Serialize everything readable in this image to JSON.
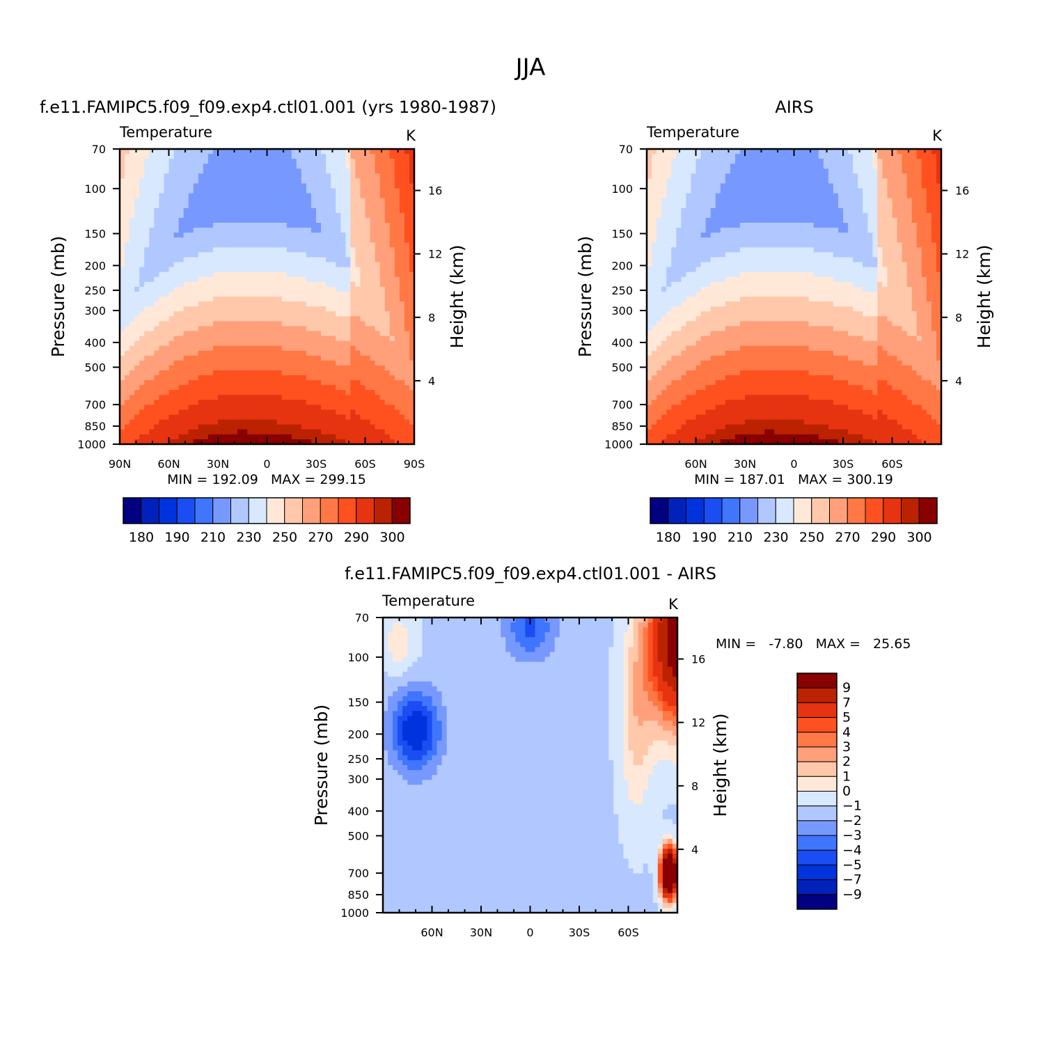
{
  "page_title": "JJA",
  "colors": {
    "abs_palette": [
      "#000080",
      "#0022bb",
      "#0033dd",
      "#1a4df2",
      "#3f75ff",
      "#7799ff",
      "#b0c8ff",
      "#d7e8ff",
      "#ffe8d8",
      "#ffc8aa",
      "#ffa07a",
      "#ff7845",
      "#ff5020",
      "#e63310",
      "#bb2200",
      "#880000"
    ],
    "diff_palette": [
      "#000080",
      "#0022bb",
      "#0033dd",
      "#1a4df2",
      "#3f75ff",
      "#7799ff",
      "#b0c8ff",
      "#d7e8ff",
      "#ffe8d8",
      "#ffc8aa",
      "#ffa07a",
      "#ff7845",
      "#ff5020",
      "#e63310",
      "#bb2200",
      "#880000"
    ]
  },
  "chart_data": [
    {
      "type": "heatmap",
      "title": "f.e11.FAMIPC5.f09_f09.exp4.ctl01.001 (yrs 1980-1987)",
      "left_label": "Temperature",
      "right_label": "K",
      "ylabel": "Pressure (mb)",
      "y2label": "Height (km)",
      "x_ticks": [
        "90N",
        "60N",
        "30N",
        "0",
        "30S",
        "60S",
        "90S"
      ],
      "x_range": [
        -90,
        90
      ],
      "y_ticks": [
        70,
        100,
        150,
        200,
        250,
        300,
        400,
        500,
        700,
        850,
        1000
      ],
      "y2_ticks": [
        4,
        8,
        12,
        16
      ],
      "stats": "MIN = 192.09   MAX = 299.15",
      "min": 192.09,
      "max": 299.15,
      "colorbar_labels": [
        "180",
        "190",
        "210",
        "230",
        "250",
        "270",
        "290",
        "300"
      ],
      "levels": [
        175,
        180,
        185,
        190,
        200,
        210,
        220,
        230,
        240,
        250,
        260,
        270,
        280,
        290,
        295,
        300
      ]
    },
    {
      "type": "heatmap",
      "title": "AIRS",
      "left_label": "Temperature",
      "right_label": "K",
      "ylabel": "Pressure (mb)",
      "y2label": "Height (km)",
      "x_ticks": [
        "60N",
        "30N",
        "0",
        "30S",
        "60S"
      ],
      "x_range": [
        -90,
        90
      ],
      "y_ticks": [
        70,
        100,
        150,
        200,
        250,
        300,
        400,
        500,
        700,
        850,
        1000
      ],
      "y2_ticks": [
        4,
        8,
        12,
        16
      ],
      "stats": "MIN = 187.01   MAX = 300.19",
      "min": 187.01,
      "max": 300.19,
      "colorbar_labels": [
        "180",
        "190",
        "210",
        "230",
        "250",
        "270",
        "290",
        "300"
      ],
      "levels": [
        175,
        180,
        185,
        190,
        200,
        210,
        220,
        230,
        240,
        250,
        260,
        270,
        280,
        290,
        295,
        300
      ]
    },
    {
      "type": "heatmap",
      "title": "f.e11.FAMIPC5.f09_f09.exp4.ctl01.001 - AIRS",
      "left_label": "Temperature",
      "right_label": "K",
      "ylabel": "Pressure (mb)",
      "y2label": "Height (km)",
      "x_ticks": [
        "60N",
        "30N",
        "0",
        "30S",
        "60S"
      ],
      "x_range": [
        -90,
        90
      ],
      "y_ticks": [
        70,
        100,
        150,
        200,
        250,
        300,
        400,
        500,
        700,
        850,
        1000
      ],
      "y2_ticks": [
        4,
        8,
        12,
        16
      ],
      "stats": "MIN =   -7.80   MAX =   25.65",
      "min": -7.8,
      "max": 25.65,
      "colorbar_labels": [
        "9",
        "7",
        "5",
        "4",
        "3",
        "2",
        "1",
        "0",
        "-1",
        "-2",
        "-3",
        "-4",
        "-5",
        "-7",
        "-9"
      ],
      "levels": [
        -9,
        -7,
        -5,
        -4,
        -3,
        -2,
        -1,
        0,
        1,
        2,
        3,
        4,
        5,
        7,
        9
      ]
    }
  ]
}
